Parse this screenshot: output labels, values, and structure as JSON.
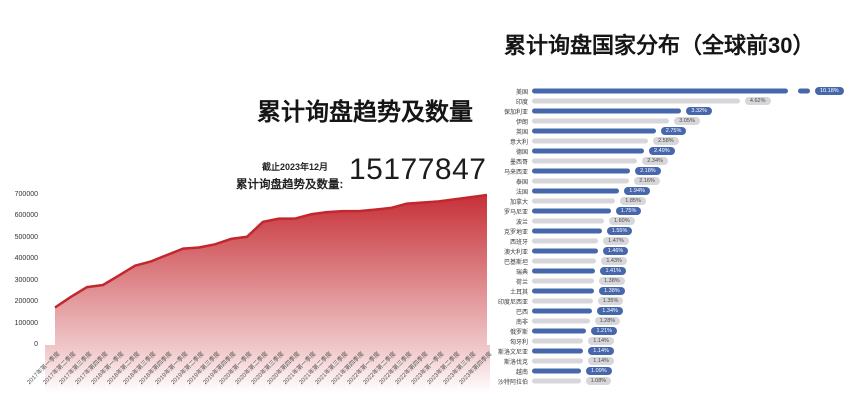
{
  "left_chart": {
    "title": "累计询盘趋势及数量",
    "as_of_label": "截止2023年12月",
    "stat_label": "累计询盘趋势及数量:",
    "stat_value": "15177847"
  },
  "right_chart": {
    "title": "累计询盘国家分布（全球前30）"
  },
  "colors": {
    "area_line": "#c2272e",
    "area_fill_top": "#c42a31",
    "blue_bar": "#4767ac",
    "gray_bar": "#d7d7db",
    "blue_badge_text": "#ffffff",
    "gray_badge_text": "#4a4a4a",
    "axis_text": "#555555"
  },
  "chart_data": [
    {
      "type": "area",
      "title": "累计询盘趋势及数量",
      "subtitle": "截止2023年12月 累计询盘趋势及数量: 15177847",
      "xlabel": "",
      "ylabel": "",
      "ylim": [
        0,
        700000
      ],
      "yticks": [
        0,
        100000,
        200000,
        300000,
        400000,
        500000,
        600000,
        700000
      ],
      "grid": false,
      "legend": "none",
      "x": [
        "2017年第一季度",
        "2017年第二季度",
        "2017年第三季度",
        "2017年第四季度",
        "2018年第一季度",
        "2018年第二季度",
        "2018年第三季度",
        "2018年第四季度",
        "2019年第一季度",
        "2019年第二季度",
        "2019年第三季度",
        "2019年第四季度",
        "2020年第一季度",
        "2020年第二季度",
        "2020年第三季度",
        "2020年第四季度",
        "2021年第一季度",
        "2021年第二季度",
        "2021年第三季度",
        "2021年第四季度",
        "2022年第一季度",
        "2022年第二季度",
        "2022年第三季度",
        "2022年第四季度",
        "2023年第一季度",
        "2023年第二季度",
        "2023年第三季度",
        "2023年第四季度"
      ],
      "values": [
        175000,
        225000,
        270000,
        280000,
        325000,
        370000,
        390000,
        420000,
        450000,
        455000,
        470000,
        495000,
        505000,
        575000,
        590000,
        590000,
        610000,
        620000,
        625000,
        625000,
        632000,
        640000,
        660000,
        665000,
        670000,
        680000,
        690000,
        700000
      ]
    },
    {
      "type": "bar",
      "orientation": "horizontal",
      "title": "累计询盘国家分布（全球前30）",
      "unit": "%",
      "legend": "none",
      "axis_break_first_bar": true,
      "alternating_colors": [
        "#4767ac",
        "#d7d7db"
      ],
      "categories": [
        "美国",
        "印度",
        "保加利亚",
        "伊朗",
        "英国",
        "意大利",
        "德国",
        "墨西哥",
        "马来西亚",
        "泰国",
        "法国",
        "加拿大",
        "罗马尼亚",
        "波兰",
        "克罗地亚",
        "西班牙",
        "澳大利亚",
        "巴基斯坦",
        "瑞典",
        "荷兰",
        "土耳其",
        "印度尼西亚",
        "巴西",
        "南非",
        "俄罗斯",
        "匈牙利",
        "斯洛文尼亚",
        "斯洛伐克",
        "越南",
        "沙特阿拉伯"
      ],
      "values": [
        10.18,
        4.62,
        3.32,
        3.05,
        2.75,
        2.58,
        2.49,
        2.34,
        2.18,
        2.16,
        1.94,
        1.85,
        1.75,
        1.6,
        1.55,
        1.47,
        1.46,
        1.43,
        1.41,
        1.38,
        1.38,
        1.35,
        1.34,
        1.28,
        1.21,
        1.14,
        1.14,
        1.14,
        1.09,
        1.08
      ],
      "value_labels": [
        "10.18%",
        "4.62%",
        "3.32%",
        "3.05%",
        "2.75%",
        "2.58%",
        "2.49%",
        "2.34%",
        "2.18%",
        "2.16%",
        "1.94%",
        "1.85%",
        "1.75%",
        "1.60%",
        "1.55%",
        "1.47%",
        "1.46%",
        "1.43%",
        "1.41%",
        "1.38%",
        "1.38%",
        "1.35%",
        "1.34%",
        "1.28%",
        "1.21%",
        "1.14%",
        "1.14%",
        "1.14%",
        "1.09%",
        "1.08%"
      ]
    }
  ]
}
